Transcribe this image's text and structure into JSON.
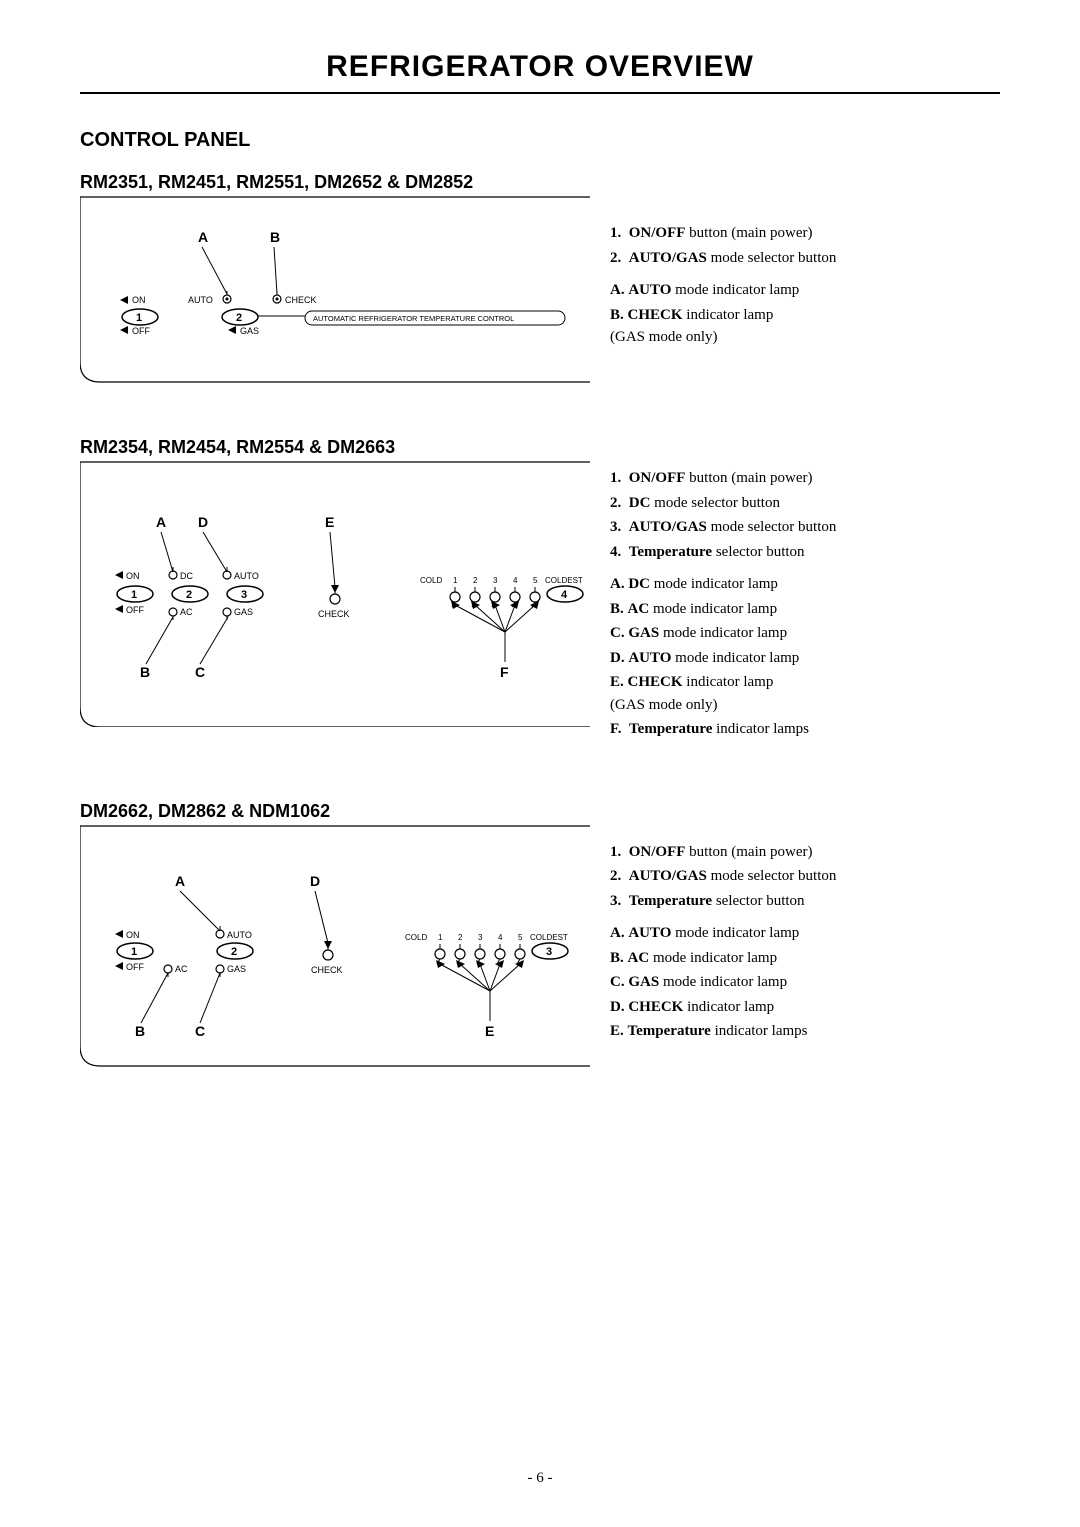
{
  "page": {
    "title": "REFRIGERATOR OVERVIEW",
    "section": "CONTROL PANEL",
    "number": "- 6 -"
  },
  "colors": {
    "text": "#000000",
    "line": "#000000",
    "bg": "#ffffff"
  },
  "p1": {
    "title": "RM2351, RM2451, RM2551, DM2652 & DM2852",
    "callouts": {
      "A": "A",
      "B": "B"
    },
    "labels": {
      "on": "ON",
      "off": "OFF",
      "auto": "AUTO",
      "gas": "GAS",
      "check": "CHECK",
      "banner": "AUTOMATIC REFRIGERATOR TEMPERATURE CONTROL"
    },
    "buttons": {
      "b1": "1",
      "b2": "2"
    },
    "legend_num": [
      "<b>ON/OFF</b> button (main power)",
      "<b>AUTO/GAS</b> mode selector button"
    ],
    "legend_let": [
      "<b>AUTO</b> mode indicator lamp",
      "<b>CHECK</b> indicator lamp<br>(GAS mode only)"
    ]
  },
  "p2": {
    "title": "RM2354, RM2454, RM2554 & DM2663",
    "callouts": {
      "A": "A",
      "B": "B",
      "C": "C",
      "D": "D",
      "E": "E",
      "F": "F"
    },
    "labels": {
      "on": "ON",
      "off": "OFF",
      "dc": "DC",
      "ac": "AC",
      "auto": "AUTO",
      "gas": "GAS",
      "check": "CHECK",
      "cold": "COLD",
      "coldest": "COLDEST",
      "t1": "1",
      "t2": "2",
      "t3": "3",
      "t4": "4",
      "t5": "5"
    },
    "buttons": {
      "b1": "1",
      "b2": "2",
      "b3": "3",
      "b4": "4"
    },
    "legend_num": [
      "<b>ON/OFF</b> button (main power)",
      "<b>DC</b> mode selector button",
      "<b>AUTO/GAS</b> mode selector button",
      "<b>Temperature</b> selector button"
    ],
    "legend_let": [
      "<b>DC</b> mode indicator lamp",
      "<b>AC</b> mode indicator lamp",
      "<b>GAS</b> mode indicator lamp",
      "<b>AUTO</b> mode indicator lamp",
      "<b>CHECK</b> indicator lamp<br>(GAS mode only)",
      "<b>Temperature</b> indicator lamps"
    ]
  },
  "p3": {
    "title": "DM2662, DM2862 & NDM1062",
    "callouts": {
      "A": "A",
      "B": "B",
      "C": "C",
      "D": "D",
      "E": "E"
    },
    "labels": {
      "on": "ON",
      "off": "OFF",
      "ac": "AC",
      "auto": "AUTO",
      "gas": "GAS",
      "check": "CHECK",
      "cold": "COLD",
      "coldest": "COLDEST",
      "t1": "1",
      "t2": "2",
      "t3": "3",
      "t4": "4",
      "t5": "5"
    },
    "buttons": {
      "b1": "1",
      "b2": "2",
      "b3": "3"
    },
    "legend_num": [
      "<b>ON/OFF</b> button (main power)",
      "<b>AUTO/GAS</b> mode selector button",
      "<b>Temperature</b> selector button"
    ],
    "legend_let": [
      "<b>AUTO</b> mode indicator lamp",
      "<b>AC</b> mode indicator lamp",
      "<b>GAS</b> mode indicator lamp",
      "<b>CHECK</b> indicator lamp",
      "<b>Temperature</b> indicator lamps"
    ]
  }
}
